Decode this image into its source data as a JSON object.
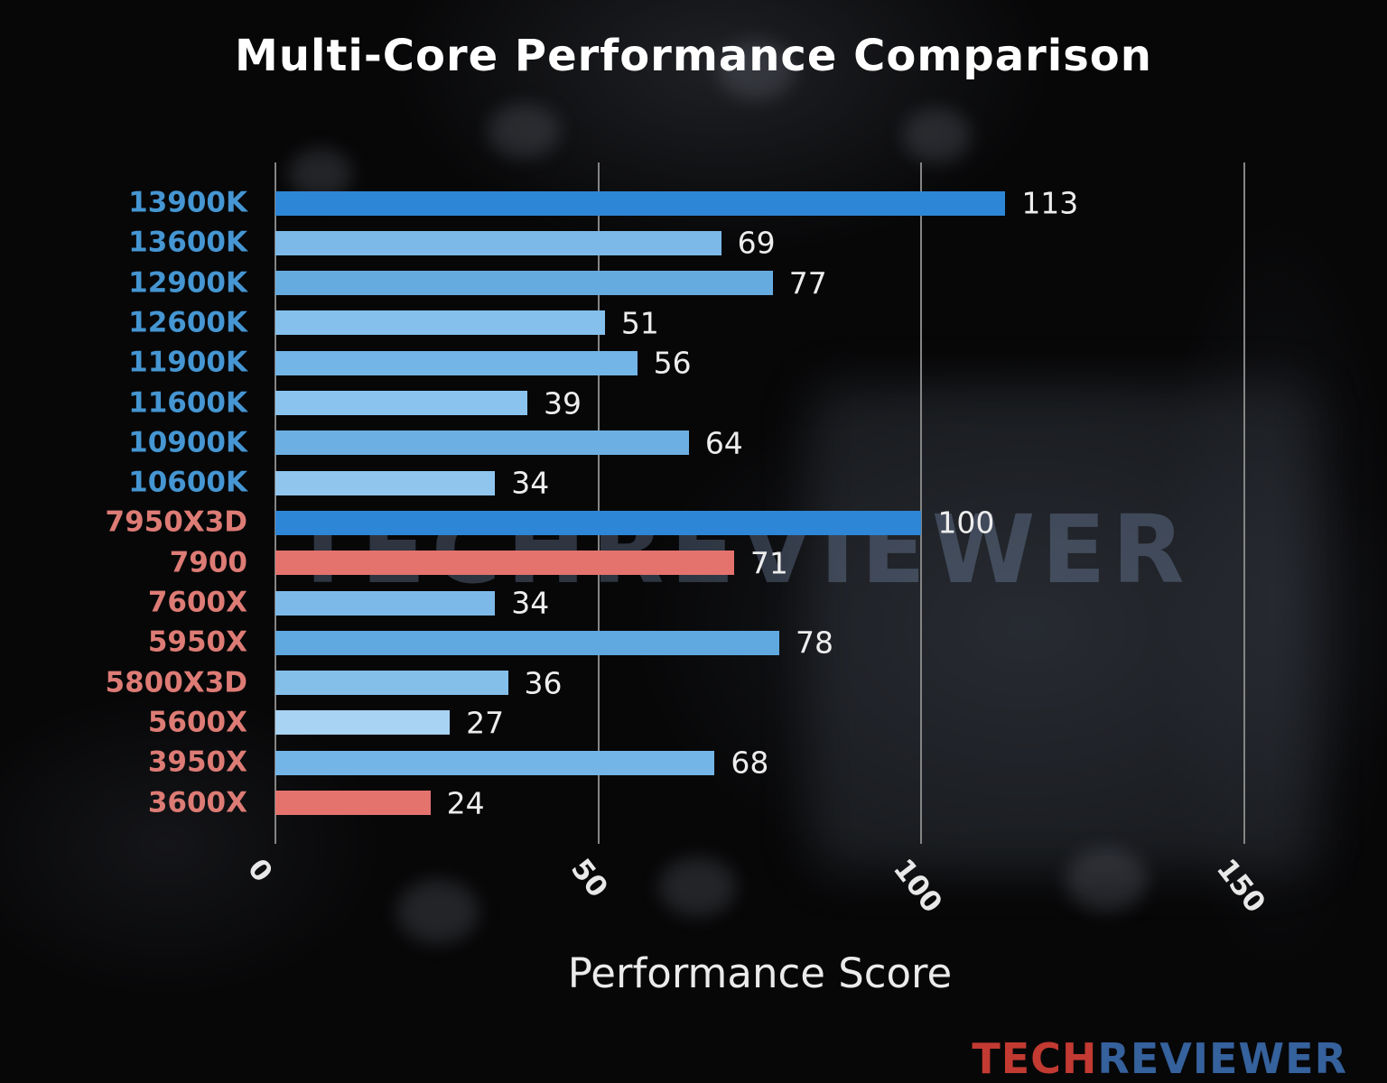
{
  "title": "Multi-Core Performance Comparison",
  "watermark": "TECHREVIEWER",
  "logo": {
    "part1": "TECH",
    "part2": "REVIEWER"
  },
  "chart_data": {
    "type": "bar",
    "orientation": "horizontal",
    "title": "Multi-Core Performance Comparison",
    "xlabel": "Performance Score",
    "xlim": [
      0,
      150
    ],
    "xticks": [
      0,
      50,
      100,
      150
    ],
    "grid": true,
    "categories": [
      "13900K",
      "13600K",
      "12900K",
      "12600K",
      "11900K",
      "11600K",
      "10900K",
      "10600K",
      "7950X3D",
      "7900",
      "7600X",
      "5950X",
      "5800X3D",
      "5600X",
      "3950X",
      "3600X"
    ],
    "values": [
      113,
      69,
      77,
      51,
      56,
      39,
      64,
      34,
      100,
      71,
      34,
      78,
      36,
      27,
      68,
      24
    ],
    "bar_colors": [
      "#2e86d6",
      "#7cb9e8",
      "#66abe0",
      "#85c0ec",
      "#73b5e6",
      "#8ac3ee",
      "#6cb0e3",
      "#90c6ee",
      "#2e86d6",
      "#e4736e",
      "#7db9e8",
      "#5fa8e0",
      "#84bfe9",
      "#a8d3f2",
      "#74b5e7",
      "#e4736e"
    ],
    "category_label_colors": [
      "#4596d2",
      "#4596d2",
      "#4596d2",
      "#4596d2",
      "#4596d2",
      "#4596d2",
      "#4596d2",
      "#4596d2",
      "#dd7b75",
      "#dd7b75",
      "#dd7b75",
      "#dd7b75",
      "#dd7b75",
      "#dd7b75",
      "#dd7b75",
      "#dd7b75"
    ],
    "value_label_color": "#ededed",
    "grid_color": "#858585",
    "brand_colors": {
      "intel_label": "#4596d2",
      "amd_label": "#dd7b75",
      "highlight_bar": "#2e86d6",
      "accent_bar": "#e4736e"
    }
  }
}
